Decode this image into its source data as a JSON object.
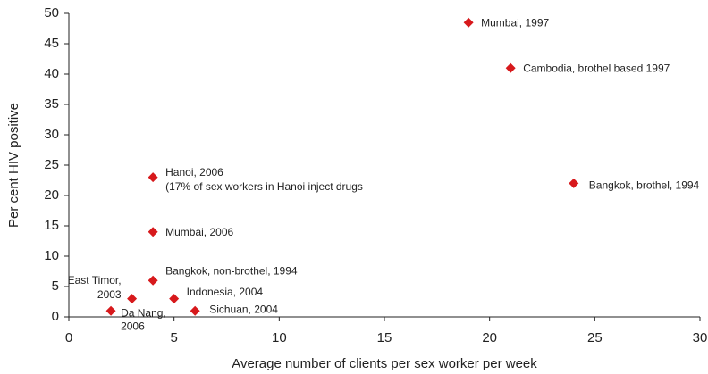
{
  "chart_data": {
    "type": "scatter",
    "xlabel": "Average number of clients per sex worker per week",
    "ylabel": "Per cent HIV positive",
    "x": [
      19,
      21,
      24,
      4,
      4,
      4,
      3,
      5,
      2,
      6
    ],
    "values": [
      48.5,
      41,
      22,
      23,
      14,
      6,
      3,
      3,
      1,
      1
    ],
    "labels": [
      [
        "Mumbai, 1997"
      ],
      [
        "Cambodia, brothel based 1997"
      ],
      [
        "Bangkok, brothel, 1994"
      ],
      [
        "Hanoi, 2006",
        "(17% of sex workers in Hanoi inject drugs"
      ],
      [
        "Mumbai, 2006"
      ],
      [
        "Bangkok, non-brothel, 1994"
      ],
      [
        "East Timor,",
        "2003"
      ],
      [
        "Indonesia, 2004"
      ],
      [
        "Da Nang,",
        "2006"
      ],
      [
        "Sichuan, 2004"
      ]
    ],
    "color": "#d7191c",
    "xlim": [
      0,
      30
    ],
    "xticks": [
      0,
      5,
      10,
      15,
      20,
      25,
      30
    ],
    "ylim": [
      0,
      50
    ],
    "yticks": [
      0,
      5,
      10,
      15,
      20,
      25,
      30,
      35,
      40,
      45,
      50
    ],
    "grid": false
  }
}
